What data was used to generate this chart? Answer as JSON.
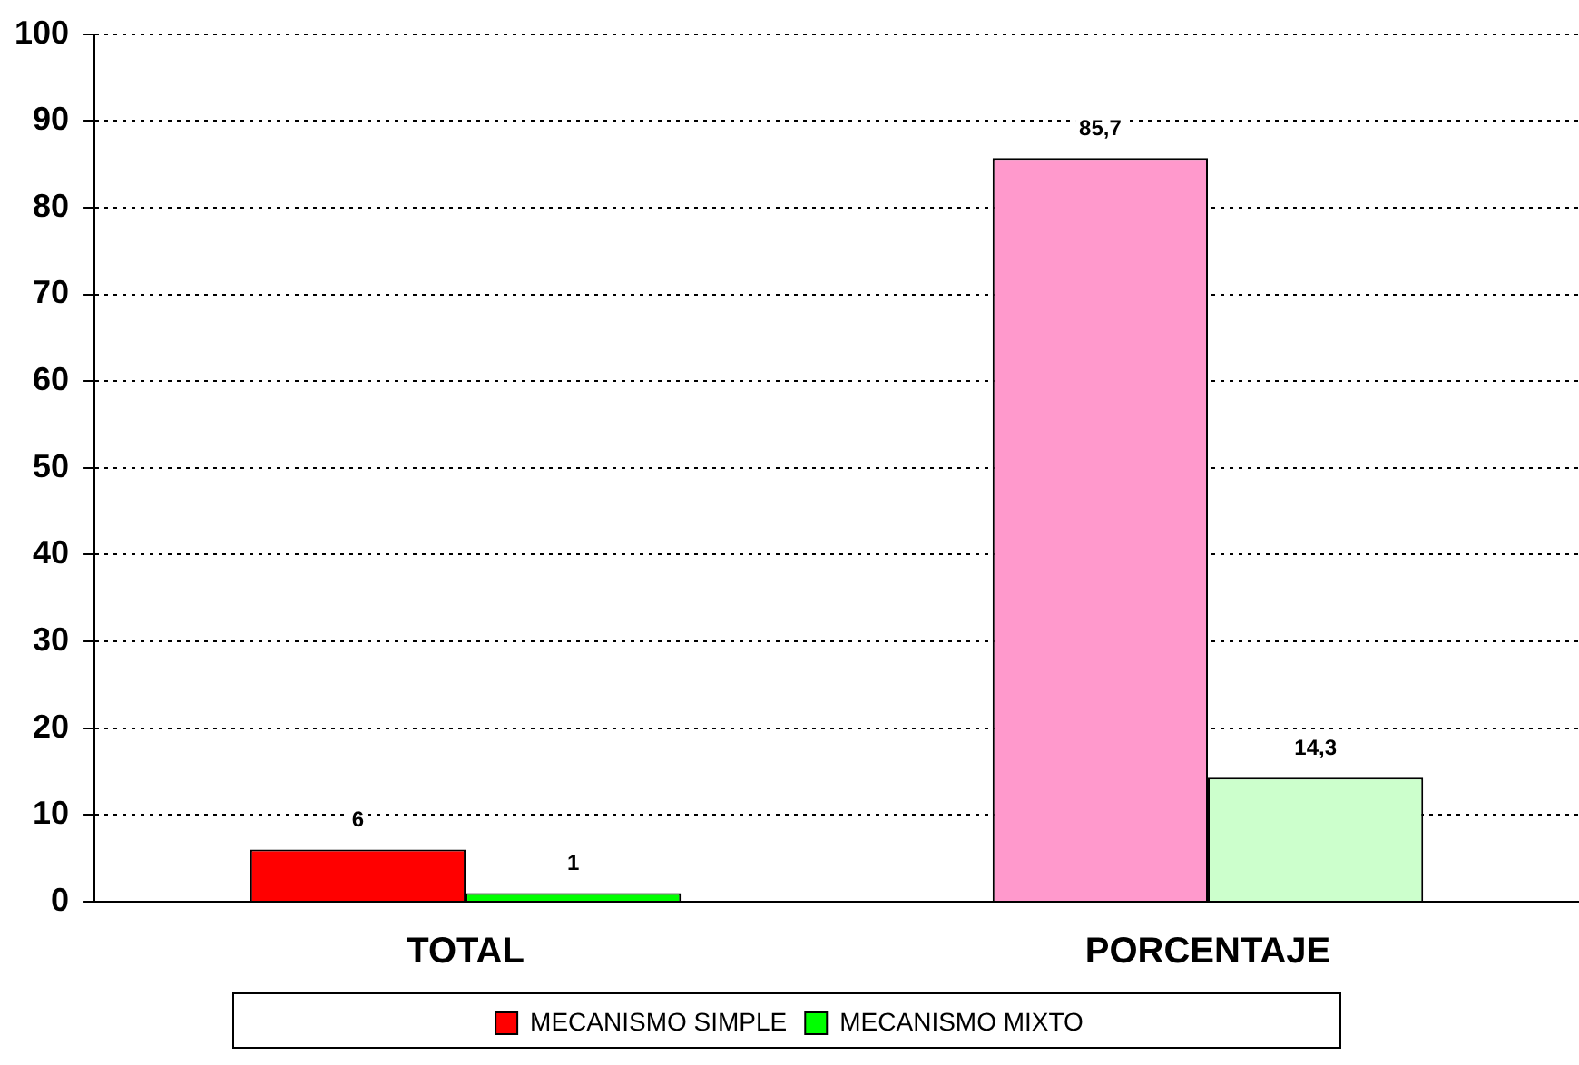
{
  "chart_data": {
    "type": "bar",
    "categories": [
      "TOTAL",
      "PORCENTAJE"
    ],
    "series": [
      {
        "name": "MECANISMO SIMPLE",
        "color": "#ff0000",
        "colors": [
          "#ff0000",
          "#ff99cc"
        ],
        "values": [
          6,
          85.7
        ],
        "value_labels": [
          "6",
          "85,7"
        ]
      },
      {
        "name": "MECANISMO MIXTO",
        "color": "#00ff00",
        "colors": [
          "#00ff00",
          "#ccffcc"
        ],
        "values": [
          1,
          14.3
        ],
        "value_labels": [
          "1",
          "14,3"
        ]
      }
    ],
    "ylim": [
      0,
      100
    ],
    "yticks": [
      0,
      10,
      20,
      30,
      40,
      50,
      60,
      70,
      80,
      90,
      100
    ],
    "grid": "y",
    "legend": "bottom"
  }
}
